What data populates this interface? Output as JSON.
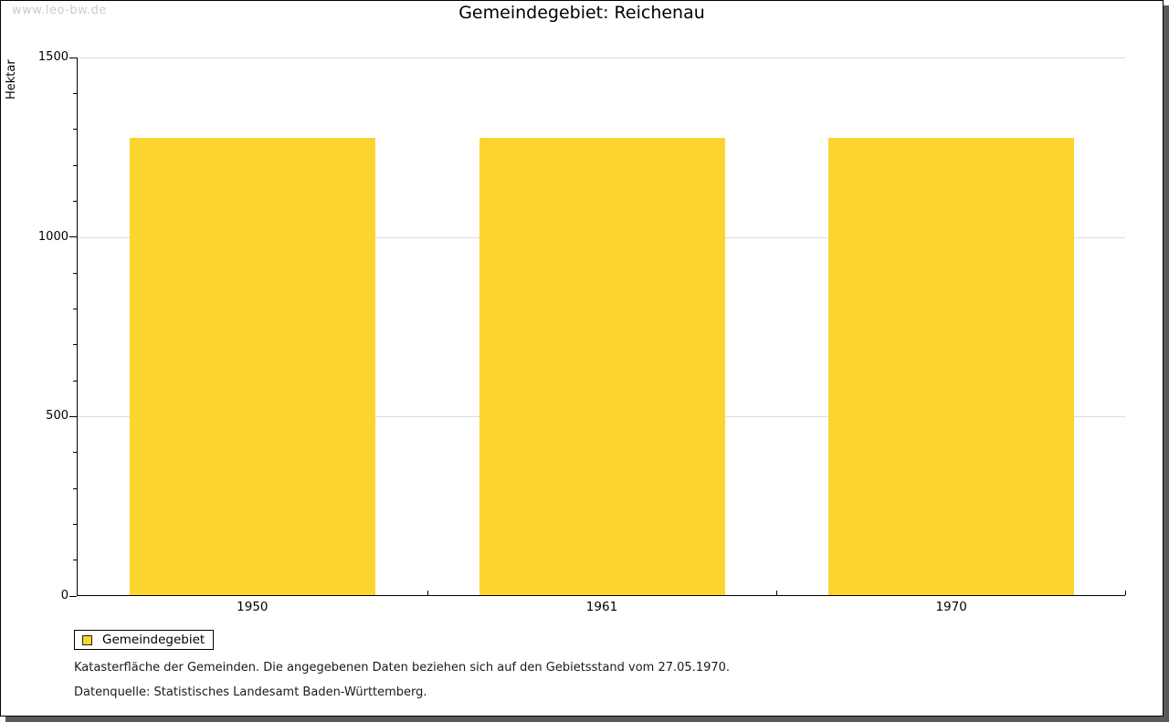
{
  "window": {
    "watermark": "www.leo-bw.de"
  },
  "chart_data": {
    "type": "bar",
    "title": "Gemeindegebiet: Reichenau",
    "xlabel": "",
    "ylabel": "Hektar",
    "categories": [
      "1950",
      "1961",
      "1970"
    ],
    "series": [
      {
        "name": "Gemeindegebiet",
        "values": [
          1274,
          1274,
          1274
        ]
      }
    ],
    "ylim": [
      0,
      1500
    ],
    "yticks_major": [
      0,
      500,
      1000,
      1500
    ],
    "ytick_minor_step": 100,
    "grid": "horizontal-major-light-gray",
    "legend_position": "bottom-left",
    "bar_color": "#FCD42F"
  },
  "legend": {
    "items": [
      {
        "label": "Gemeindegebiet",
        "color": "#FCD42F"
      }
    ]
  },
  "footnotes": [
    "Katasterfläche der Gemeinden. Die angegebenen Daten beziehen sich auf den Gebietsstand vom 27.05.1970.",
    "Datenquelle: Statistisches Landesamt Baden-Württemberg."
  ],
  "colors": {
    "bar": "#FCD42F",
    "grid": "#DDDDDD",
    "axis": "#000000",
    "watermark": "#CCCCCC",
    "frame_shadow": "#5A5A5A",
    "background": "#FFFFFF"
  }
}
